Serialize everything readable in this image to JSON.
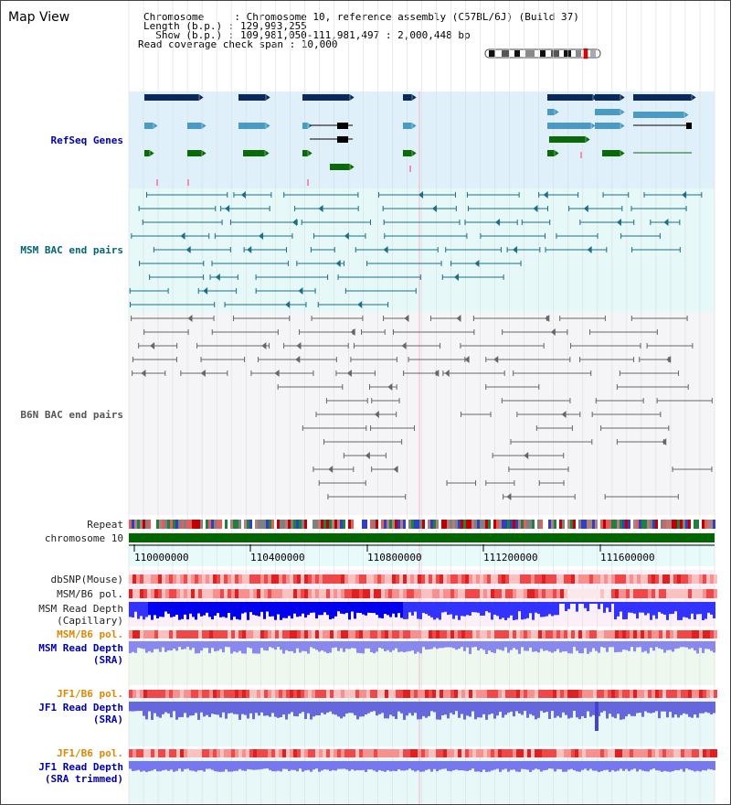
{
  "app": {
    "title": "Map View"
  },
  "header": {
    "line1": "Chromosome     : Chromosome 10, reference assembly (C57BL/6J) (Build 37)",
    "line2": "Length (b.p.) : 129,993,255",
    "line3": "  Show (b.p.) : 109,981,050-111,981,497 : 2,000,448 bp",
    "line4": "Read coverage check span : 10,000"
  },
  "tracks": {
    "refseq": "RefSeq Genes",
    "msm_bac": "MSM BAC end pairs",
    "b6n_bac": "B6N BAC end pairs",
    "repeat": "Repeat",
    "chromosome": "chromosome 10",
    "dbsnp": "dbSNP(Mouse)",
    "msm_b6_pol": "MSM/B6 pol.",
    "msm_read_depth_cap_1": "MSM Read Depth",
    "msm_read_depth_cap_2": "(Capillary)",
    "msm_b6_pol2": "MSM/B6 pol.",
    "msm_read_depth_sra_1": "MSM Read Depth",
    "msm_read_depth_sra_2": "(SRA)",
    "jf1_b6_pol": "JF1/B6 pol.",
    "jf1_read_depth_sra_1": "JF1 Read Depth",
    "jf1_read_depth_sra_2": "(SRA)",
    "jf1_b6_pol2": "JF1/B6 pol.",
    "jf1_read_depth_trim_1": "JF1 Read Depth",
    "jf1_read_depth_trim_2": "(SRA trimmed)"
  },
  "axis": {
    "ticks": [
      "110000000",
      "110400000",
      "110800000",
      "111200000",
      "111600000"
    ]
  },
  "colors": {
    "refseq_bg": "#dff0fa",
    "msm_bg": "#e6f8f8",
    "b6n_bg": "#f5f5f8",
    "chrom_green": "#006600",
    "gene_navy": "#0a2a5a",
    "gene_light": "#4a9ac4",
    "gene_green": "#0a6a0a",
    "msm_teal": "#1a6f88",
    "b6n_grey": "#666666"
  }
}
